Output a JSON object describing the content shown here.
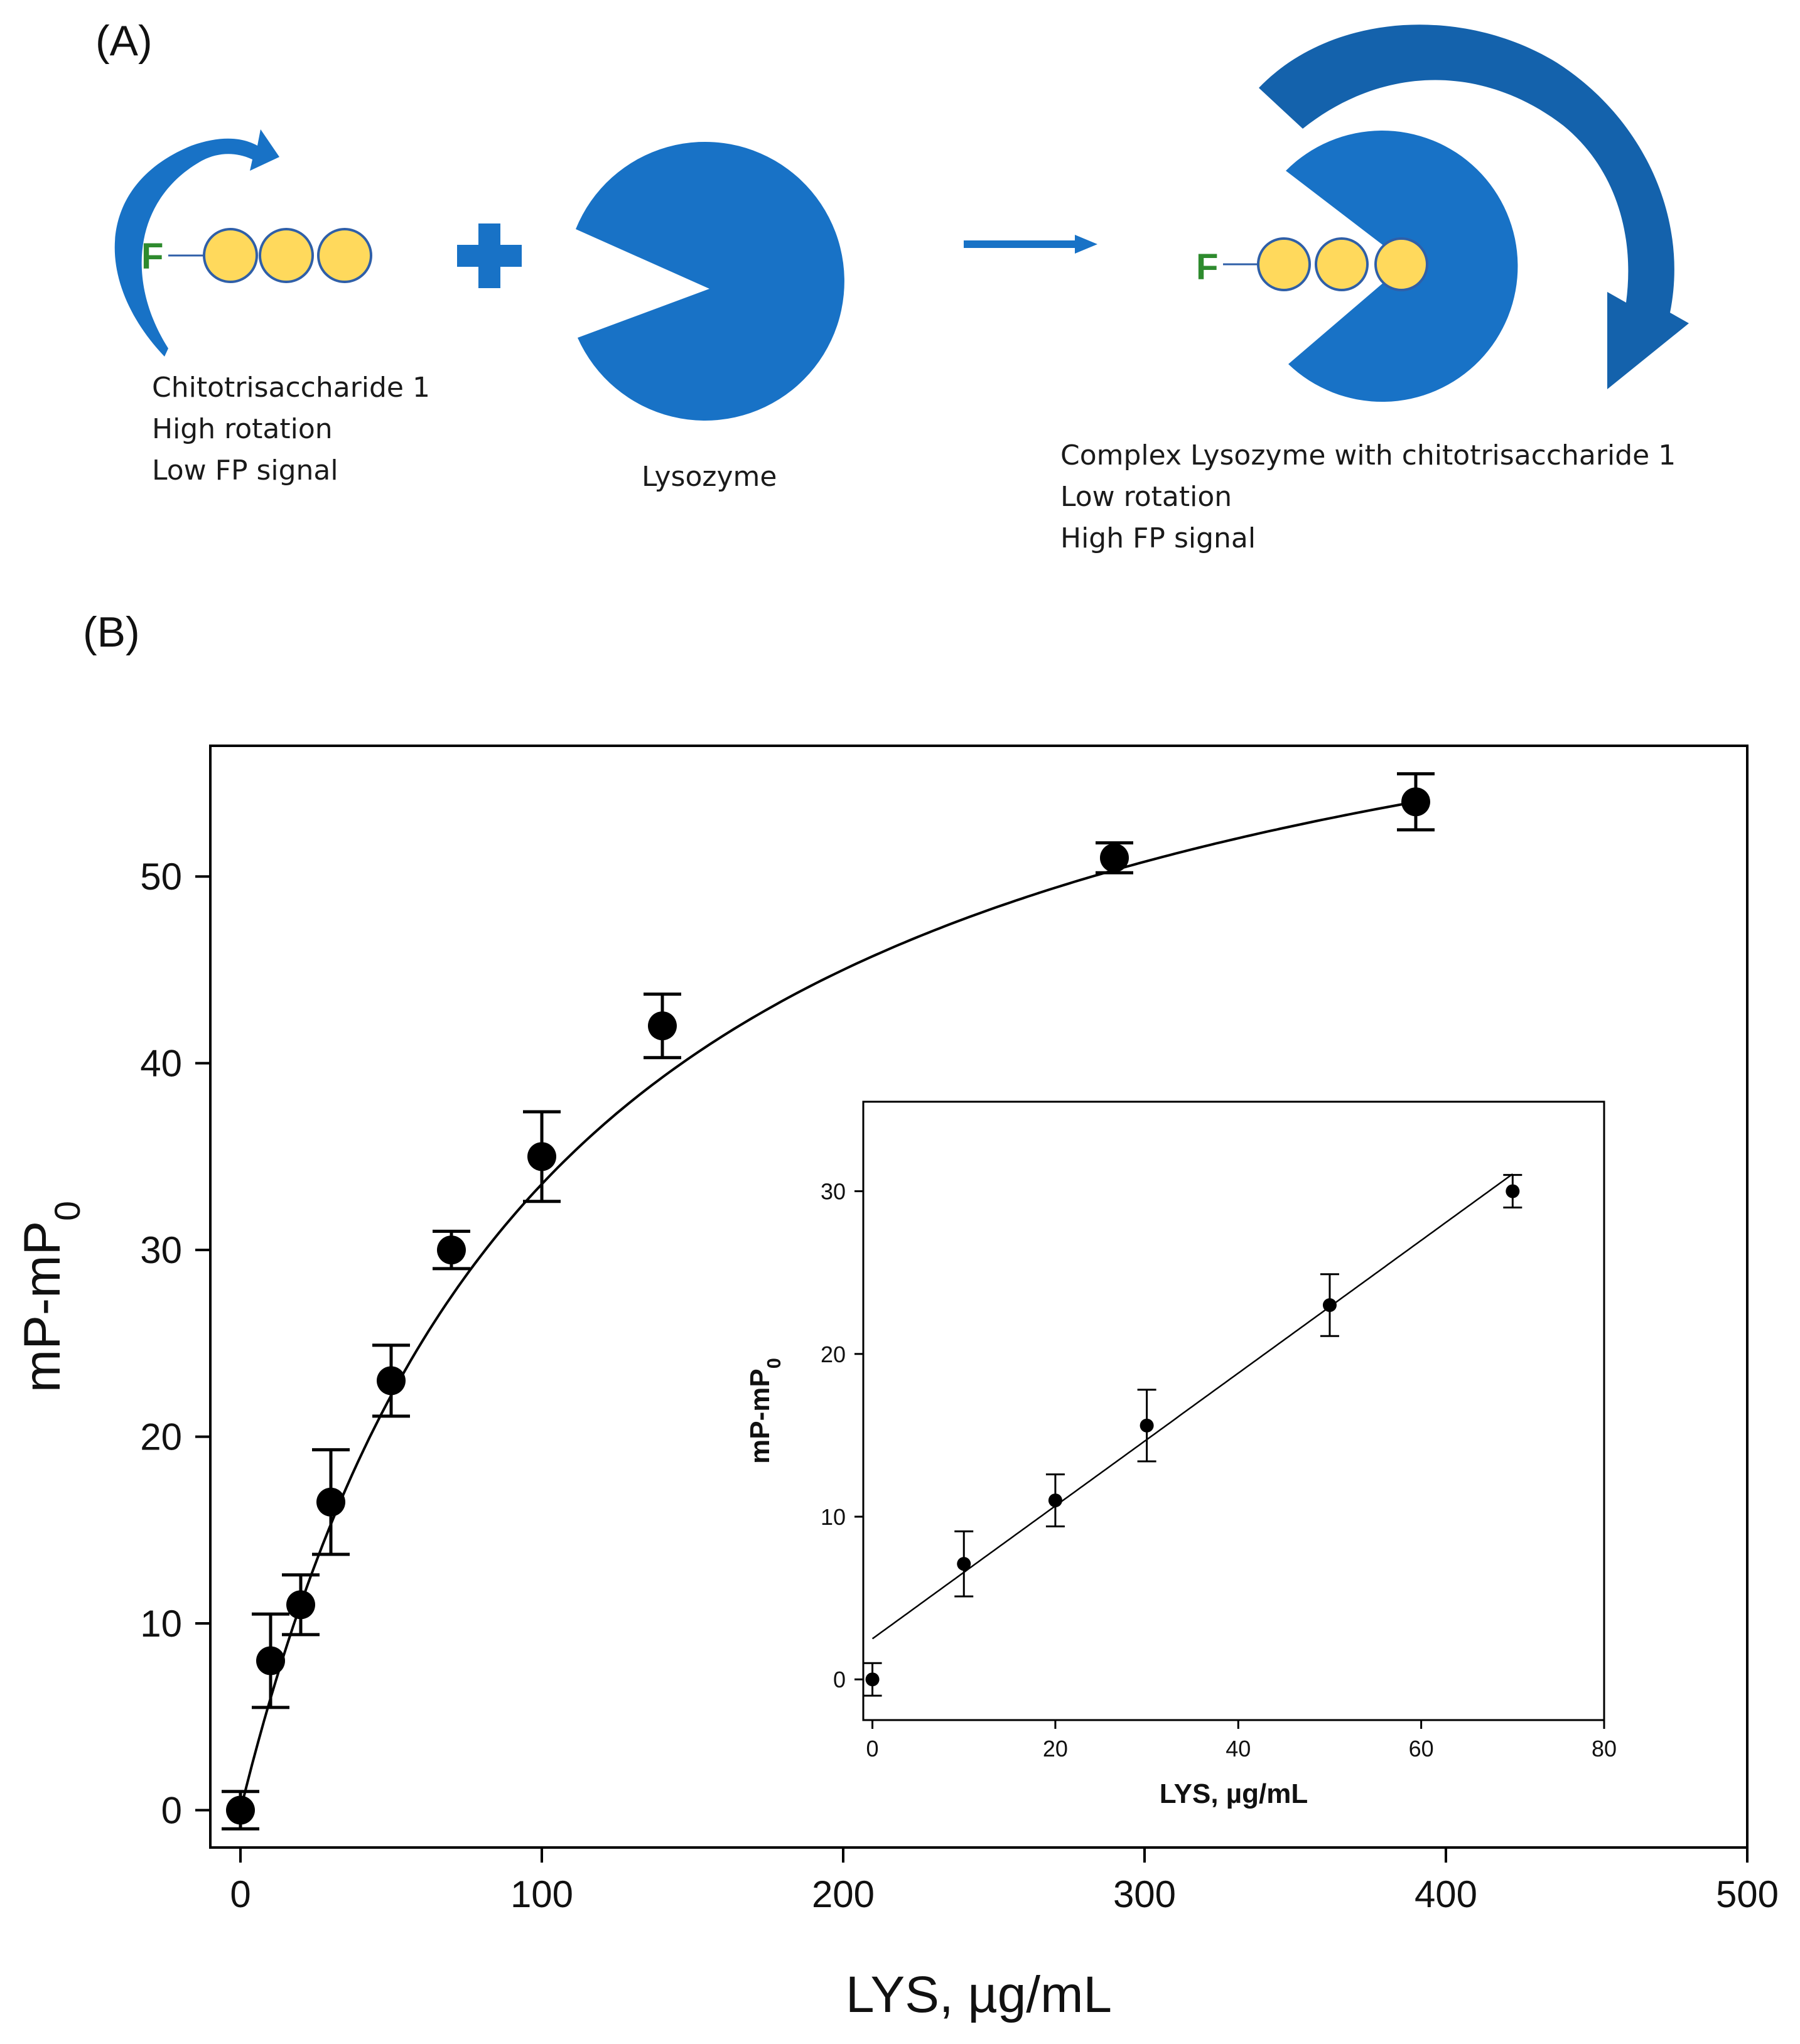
{
  "panel_a": {
    "label": "(A)",
    "fluorophore": "F",
    "ligand_lines": [
      "Chitotrisaccharide 1",
      "High rotation",
      "Low FP signal"
    ],
    "enzyme_label": "Lysozyme",
    "complex_lines": [
      "Complex Lysozyme with chitotrisaccharide 1",
      "Low rotation",
      "High FP signal"
    ],
    "colors": {
      "blue": "#1872C6",
      "dark_blue": "#0F5A9E",
      "sugar": "#FFD95C",
      "sugar_edge": "#2F5FA8",
      "fluor": "#2E8B2E"
    }
  },
  "panel_b": {
    "label": "(B)"
  },
  "chart_data": [
    {
      "type": "scatter",
      "title": "",
      "xlabel": "LYS, µg/mL",
      "ylabel_main": "mP-mP",
      "ylabel_sub": "0",
      "xlim": [
        -10,
        500
      ],
      "ylim": [
        -2,
        57
      ],
      "xticks": [
        0,
        100,
        200,
        300,
        400,
        500
      ],
      "yticks": [
        0,
        10,
        20,
        30,
        40,
        50
      ],
      "grid": false,
      "x": [
        0,
        10,
        20,
        30,
        50,
        70,
        100,
        140,
        290,
        390
      ],
      "y": [
        0,
        8,
        11,
        16.5,
        23,
        30,
        35,
        42,
        51,
        54
      ],
      "yerr": [
        1.0,
        2.5,
        1.6,
        2.8,
        1.9,
        1.0,
        2.4,
        1.7,
        0.8,
        1.5
      ],
      "fit": {
        "model": "hyperbolic",
        "max": 68.4,
        "half": 104,
        "range": [
          0,
          390
        ]
      }
    },
    {
      "type": "scatter",
      "title": "",
      "xlabel": "LYS, µg/mL",
      "ylabel_main": "mP-mP",
      "ylabel_sub": "0",
      "xlim": [
        -1,
        80
      ],
      "ylim": [
        -2.5,
        35.5
      ],
      "xticks": [
        0,
        20,
        40,
        60,
        80
      ],
      "yticks": [
        0,
        10,
        20,
        30
      ],
      "grid": false,
      "x": [
        0,
        10,
        20,
        30,
        50,
        70
      ],
      "y": [
        0,
        7.1,
        11,
        15.6,
        23,
        30
      ],
      "yerr": [
        1.0,
        2.0,
        1.6,
        2.2,
        1.9,
        1.0
      ],
      "fit": {
        "model": "linear",
        "slope": 0.408,
        "intercept": 2.5,
        "range": [
          0,
          70
        ]
      }
    }
  ]
}
